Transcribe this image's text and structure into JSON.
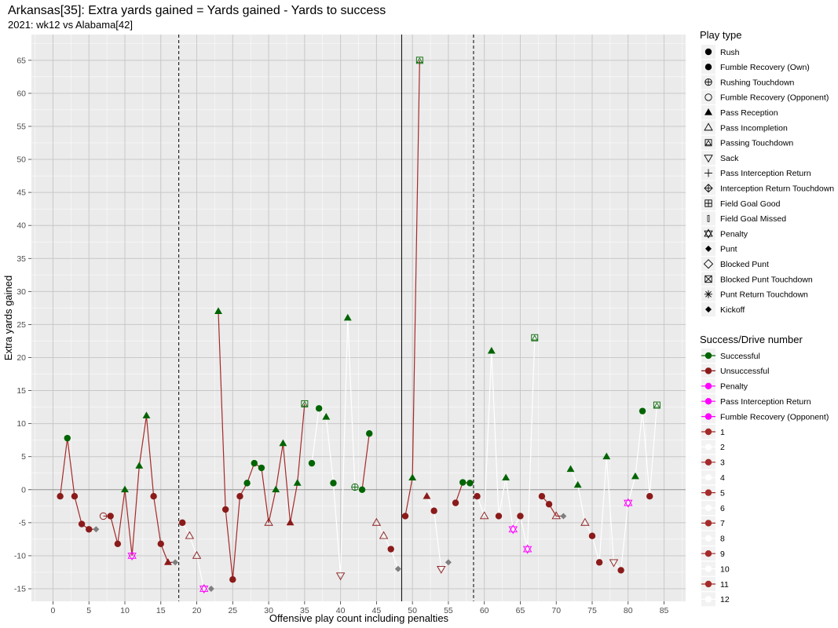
{
  "chart_data": {
    "type": "line",
    "title": "Arkansas[35]: Extra yards gained = Yards gained - Yards to success",
    "subtitle": "2021: wk12 vs Alabama[42]",
    "xlabel": "Offensive play count including penalties",
    "ylabel": "Extra yards gained",
    "xlim": [
      -3,
      88
    ],
    "ylim": [
      -16.9,
      68.9
    ],
    "x_ticks": [
      0,
      5,
      10,
      15,
      20,
      25,
      30,
      35,
      40,
      45,
      50,
      55,
      60,
      65,
      70,
      75,
      80,
      85
    ],
    "y_ticks": [
      -15,
      -10,
      -5,
      0,
      5,
      10,
      15,
      20,
      25,
      30,
      35,
      40,
      45,
      50,
      55,
      60,
      65
    ],
    "grid": true,
    "legend_position": "right",
    "reference_lines": {
      "quarter_breaks_dashed": [
        17.5,
        58.5
      ],
      "half_break_solid": 48.5,
      "zero_line": 0
    },
    "colors": {
      "successful": "#006400",
      "unsuccessful": "#8B1A1A",
      "penalty": "#FF00FF",
      "kick": "#7f7f7f",
      "drive_odd": "#A52A2A",
      "drive_even": "#FFFFFF"
    },
    "legend_play_type_title": "Play type",
    "play_types": [
      "Rush",
      "Fumble Recovery (Own)",
      "Rushing Touchdown",
      "Fumble Recovery (Opponent)",
      "Pass Reception",
      "Pass Incompletion",
      "Passing Touchdown",
      "Sack",
      "Pass Interception Return",
      "Interception Return Touchdown",
      "Field Goal Good",
      "Field Goal Missed",
      "Penalty",
      "Punt",
      "Blocked Punt",
      "Blocked Punt Touchdown",
      "Punt Return Touchdown",
      "Kickoff"
    ],
    "play_type_icons": [
      "filled-circle",
      "filled-circle",
      "circle-plus",
      "open-circle",
      "filled-triangle",
      "open-triangle",
      "square-cross",
      "open-triangle-down",
      "plus",
      "diamond-plus",
      "square-plus",
      "bar",
      "star-of-david",
      "filled-diamond",
      "open-diamond",
      "square-x",
      "asterisk",
      "filled-diamond-small"
    ],
    "legend_success_title": "Success/Drive number",
    "success_labels": [
      "Successful",
      "Unsuccessful",
      "Penalty",
      "Pass Interception Return",
      "Fumble Recovery (Opponent)"
    ],
    "success_colors": [
      "#006400",
      "#8B1A1A",
      "#FF00FF",
      "#FF00FF",
      "#FF00FF"
    ],
    "drive_labels": [
      "1",
      "2",
      "3",
      "4",
      "5",
      "6",
      "7",
      "8",
      "9",
      "10",
      "11",
      "12"
    ],
    "drive_colors": [
      "#A52A2A",
      "#FFFFFF",
      "#A52A2A",
      "#FFFFFF",
      "#A52A2A",
      "#FFFFFF",
      "#A52A2A",
      "#FFFFFF",
      "#A52A2A",
      "#FFFFFF",
      "#A52A2A",
      "#FFFFFF"
    ],
    "drives": [
      {
        "drive": 1,
        "points": [
          {
            "x": 1,
            "y": -1,
            "type": "rush",
            "result": "unsuccessful"
          },
          {
            "x": 2,
            "y": 7.8,
            "type": "rush",
            "result": "successful"
          },
          {
            "x": 3,
            "y": -1,
            "type": "rush",
            "result": "unsuccessful"
          },
          {
            "x": 4,
            "y": -5.2,
            "type": "rush",
            "result": "unsuccessful"
          },
          {
            "x": 5,
            "y": -6,
            "type": "rush",
            "result": "unsuccessful"
          },
          {
            "x": 6,
            "y": -6,
            "type": "punt",
            "result": "kick"
          }
        ]
      },
      {
        "drive": 3,
        "points": [
          {
            "x": 7,
            "y": -4,
            "type": "fumble_opp",
            "result": "unsuccessful"
          },
          {
            "x": 8,
            "y": -4,
            "type": "rush",
            "result": "unsuccessful"
          },
          {
            "x": 9,
            "y": -8.2,
            "type": "rush",
            "result": "unsuccessful"
          },
          {
            "x": 10,
            "y": 0,
            "type": "pass_reception",
            "result": "successful"
          },
          {
            "x": 11,
            "y": -10,
            "type": "penalty",
            "result": "penalty"
          },
          {
            "x": 12,
            "y": 3.6,
            "type": "pass_reception",
            "result": "successful"
          },
          {
            "x": 13,
            "y": 11.2,
            "type": "pass_reception",
            "result": "successful"
          },
          {
            "x": 14,
            "y": -1,
            "type": "rush",
            "result": "unsuccessful"
          },
          {
            "x": 15,
            "y": -8.2,
            "type": "rush",
            "result": "unsuccessful"
          },
          {
            "x": 16,
            "y": -11,
            "type": "pass_reception",
            "result": "unsuccessful"
          },
          {
            "x": 17,
            "y": -11,
            "type": "punt",
            "result": "kick"
          }
        ]
      },
      {
        "drive": 4,
        "points": [
          {
            "x": 18,
            "y": -5,
            "type": "rush",
            "result": "unsuccessful"
          },
          {
            "x": 19,
            "y": -7,
            "type": "pass_incompletion",
            "result": "unsuccessful"
          },
          {
            "x": 20,
            "y": -10,
            "type": "pass_incompletion",
            "result": "unsuccessful"
          },
          {
            "x": 21,
            "y": -15,
            "type": "penalty",
            "result": "penalty"
          },
          {
            "x": 22,
            "y": -15,
            "type": "punt",
            "result": "kick"
          }
        ]
      },
      {
        "drive": 5,
        "points": [
          {
            "x": 23,
            "y": 27,
            "type": "pass_reception",
            "result": "successful"
          },
          {
            "x": 24,
            "y": -3,
            "type": "rush",
            "result": "unsuccessful"
          },
          {
            "x": 25,
            "y": -13.6,
            "type": "rush",
            "result": "unsuccessful"
          },
          {
            "x": 26,
            "y": -1,
            "type": "rush",
            "result": "unsuccessful"
          },
          {
            "x": 27,
            "y": 1,
            "type": "rush",
            "result": "successful"
          },
          {
            "x": 28,
            "y": 4,
            "type": "rush",
            "result": "successful"
          },
          {
            "x": 29,
            "y": 3.3,
            "type": "rush",
            "result": "successful"
          },
          {
            "x": 30,
            "y": -5,
            "type": "pass_incompletion",
            "result": "unsuccessful"
          },
          {
            "x": 31,
            "y": 0,
            "type": "pass_reception",
            "result": "successful"
          },
          {
            "x": 32,
            "y": 7,
            "type": "pass_reception",
            "result": "successful"
          },
          {
            "x": 33,
            "y": -5,
            "type": "pass_reception",
            "result": "unsuccessful"
          },
          {
            "x": 34,
            "y": 1,
            "type": "pass_reception",
            "result": "successful"
          },
          {
            "x": 35,
            "y": 13,
            "type": "passing_td",
            "result": "successful"
          }
        ]
      },
      {
        "drive": 6,
        "points": [
          {
            "x": 36,
            "y": 4,
            "type": "rush",
            "result": "successful"
          },
          {
            "x": 37,
            "y": 12.3,
            "type": "rush",
            "result": "successful"
          },
          {
            "x": 38,
            "y": 11,
            "type": "pass_reception",
            "result": "successful"
          },
          {
            "x": 39,
            "y": 1,
            "type": "rush",
            "result": "successful"
          },
          {
            "x": 40,
            "y": -13,
            "type": "sack",
            "result": "unsuccessful"
          },
          {
            "x": 41,
            "y": 26,
            "type": "pass_reception",
            "result": "successful"
          },
          {
            "x": 42,
            "y": 0.4,
            "type": "rushing_td",
            "result": "successful"
          }
        ]
      },
      {
        "drive": 7,
        "points": [
          {
            "x": 43,
            "y": 0,
            "type": "rush",
            "result": "successful"
          },
          {
            "x": 44,
            "y": 8.5,
            "type": "rush",
            "result": "successful"
          }
        ]
      },
      {
        "drive": 8,
        "points": [
          {
            "x": 45,
            "y": -5,
            "type": "pass_incompletion",
            "result": "unsuccessful"
          },
          {
            "x": 46,
            "y": -7,
            "type": "pass_incompletion",
            "result": "unsuccessful"
          },
          {
            "x": 47,
            "y": -9,
            "type": "rush",
            "result": "unsuccessful"
          },
          {
            "x": 48,
            "y": -12,
            "type": "kickoff",
            "result": "kick"
          }
        ]
      },
      {
        "drive": 9,
        "points": [
          {
            "x": 49,
            "y": -4,
            "type": "rush",
            "result": "unsuccessful"
          },
          {
            "x": 50,
            "y": 1.8,
            "type": "pass_reception",
            "result": "successful"
          },
          {
            "x": 51,
            "y": 65,
            "type": "passing_td",
            "result": "successful"
          }
        ]
      },
      {
        "drive": 10,
        "points": [
          {
            "x": 52,
            "y": -1,
            "type": "pass_reception",
            "result": "unsuccessful"
          },
          {
            "x": 53,
            "y": -3.2,
            "type": "rush",
            "result": "unsuccessful"
          },
          {
            "x": 54,
            "y": -12,
            "type": "sack",
            "result": "unsuccessful"
          },
          {
            "x": 55,
            "y": -11,
            "type": "punt",
            "result": "kick"
          }
        ]
      },
      {
        "drive": 11,
        "points": [
          {
            "x": 56,
            "y": -2,
            "type": "rush",
            "result": "unsuccessful"
          },
          {
            "x": 57,
            "y": 1.1,
            "type": "rush",
            "result": "successful"
          },
          {
            "x": 58,
            "y": 1,
            "type": "rush",
            "result": "successful"
          }
        ]
      },
      {
        "drive": 12,
        "points": [
          {
            "x": 59,
            "y": -1,
            "type": "rush",
            "result": "unsuccessful"
          },
          {
            "x": 60,
            "y": -4,
            "type": "pass_incompletion",
            "result": "unsuccessful"
          },
          {
            "x": 61,
            "y": 21,
            "type": "pass_reception",
            "result": "successful"
          },
          {
            "x": 62,
            "y": -4,
            "type": "rush",
            "result": "unsuccessful"
          },
          {
            "x": 63,
            "y": 1.8,
            "type": "pass_reception",
            "result": "successful"
          },
          {
            "x": 64,
            "y": -6,
            "type": "penalty",
            "result": "penalty"
          },
          {
            "x": 65,
            "y": -4,
            "type": "rush",
            "result": "unsuccessful"
          },
          {
            "x": 66,
            "y": -9,
            "type": "penalty",
            "result": "penalty"
          },
          {
            "x": 67,
            "y": 23,
            "type": "passing_td",
            "result": "successful"
          }
        ]
      },
      {
        "drive": 13,
        "points": [
          {
            "x": 68,
            "y": -1,
            "type": "rush",
            "result": "unsuccessful"
          },
          {
            "x": 69,
            "y": -2.2,
            "type": "rush",
            "result": "unsuccessful"
          },
          {
            "x": 70,
            "y": -4,
            "type": "pass_incompletion",
            "result": "unsuccessful"
          },
          {
            "x": 71,
            "y": -4,
            "type": "punt",
            "result": "kick"
          }
        ]
      },
      {
        "drive": 14,
        "points": [
          {
            "x": 72,
            "y": 3.1,
            "type": "pass_reception",
            "result": "successful"
          },
          {
            "x": 73,
            "y": 0.7,
            "type": "pass_reception",
            "result": "successful"
          },
          {
            "x": 74,
            "y": -5,
            "type": "pass_incompletion",
            "result": "unsuccessful"
          },
          {
            "x": 75,
            "y": -7,
            "type": "rush",
            "result": "unsuccessful"
          },
          {
            "x": 76,
            "y": -11,
            "type": "rush",
            "result": "unsuccessful"
          },
          {
            "x": 77,
            "y": 5,
            "type": "pass_reception",
            "result": "successful"
          },
          {
            "x": 78,
            "y": -11,
            "type": "sack",
            "result": "unsuccessful"
          },
          {
            "x": 79,
            "y": -12.2,
            "type": "rush",
            "result": "unsuccessful"
          },
          {
            "x": 80,
            "y": -2,
            "type": "penalty",
            "result": "penalty"
          },
          {
            "x": 81,
            "y": 2,
            "type": "pass_reception",
            "result": "successful"
          },
          {
            "x": 82,
            "y": 11.9,
            "type": "rush",
            "result": "successful"
          },
          {
            "x": 83,
            "y": -1,
            "type": "rush",
            "result": "unsuccessful"
          },
          {
            "x": 84,
            "y": 12.8,
            "type": "passing_td",
            "result": "successful"
          }
        ]
      }
    ]
  }
}
